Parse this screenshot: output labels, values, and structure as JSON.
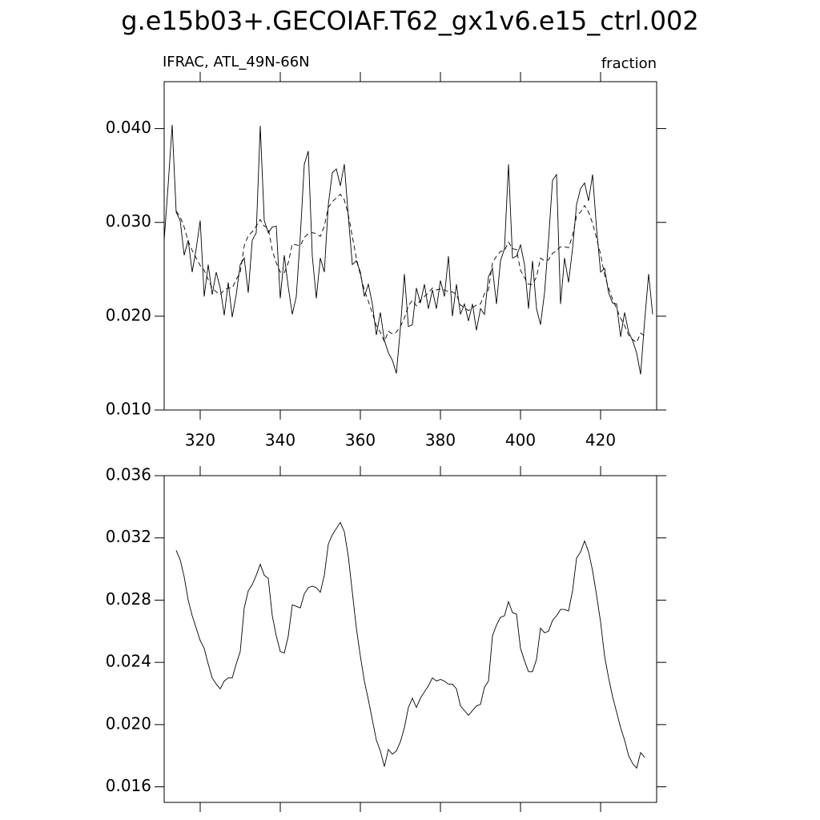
{
  "title": "g.e15b03+.GECOIAF.T62_gx1v6.e15_ctrl.002",
  "chart_data": [
    {
      "type": "line",
      "left_label": "IFRAC, ATL_49N-66N",
      "right_label": "fraction",
      "x": [
        311,
        312,
        313,
        314,
        315,
        316,
        317,
        318,
        319,
        320,
        321,
        322,
        323,
        324,
        325,
        326,
        327,
        328,
        329,
        330,
        331,
        332,
        333,
        334,
        335,
        336,
        337,
        338,
        339,
        340,
        341,
        342,
        343,
        344,
        345,
        346,
        347,
        348,
        349,
        350,
        351,
        352,
        353,
        354,
        355,
        356,
        357,
        358,
        359,
        360,
        361,
        362,
        363,
        364,
        365,
        366,
        367,
        368,
        369,
        370,
        371,
        372,
        373,
        374,
        375,
        376,
        377,
        378,
        379,
        380,
        381,
        382,
        383,
        384,
        385,
        386,
        387,
        388,
        389,
        390,
        391,
        392,
        393,
        394,
        395,
        396,
        397,
        398,
        399,
        400,
        401,
        402,
        403,
        404,
        405,
        406,
        407,
        408,
        409,
        410,
        411,
        412,
        413,
        414,
        415,
        416,
        417,
        418,
        419,
        420,
        421,
        422,
        423,
        424,
        425,
        426,
        427,
        428,
        429,
        430,
        431,
        432,
        433
      ],
      "series": [
        {
          "color": "#000000",
          "dash": false,
          "values": [
            0.0281,
            0.034,
            0.0404,
            0.0311,
            0.0302,
            0.0265,
            0.0281,
            0.0247,
            0.0272,
            0.0302,
            0.0221,
            0.0255,
            0.0223,
            0.0247,
            0.023,
            0.0201,
            0.0236,
            0.0199,
            0.0223,
            0.0255,
            0.0262,
            0.0225,
            0.0281,
            0.0289,
            0.0403,
            0.0302,
            0.0289,
            0.0295,
            0.0296,
            0.0219,
            0.0265,
            0.0231,
            0.0202,
            0.0221,
            0.0285,
            0.0362,
            0.0376,
            0.0264,
            0.0219,
            0.0262,
            0.0247,
            0.0319,
            0.0353,
            0.0357,
            0.0339,
            0.0362,
            0.0306,
            0.0255,
            0.0259,
            0.0247,
            0.0221,
            0.0234,
            0.0213,
            0.018,
            0.0204,
            0.0174,
            0.0161,
            0.0153,
            0.0139,
            0.0187,
            0.0245,
            0.0189,
            0.0191,
            0.023,
            0.0214,
            0.0234,
            0.0208,
            0.0228,
            0.0208,
            0.0238,
            0.0221,
            0.0264,
            0.02,
            0.0234,
            0.0202,
            0.0213,
            0.0195,
            0.0213,
            0.0185,
            0.0208,
            0.0202,
            0.0242,
            0.0251,
            0.0213,
            0.0259,
            0.0272,
            0.0362,
            0.0262,
            0.0264,
            0.0276,
            0.0255,
            0.0208,
            0.0259,
            0.0208,
            0.0191,
            0.0225,
            0.0281,
            0.0345,
            0.0351,
            0.0213,
            0.0262,
            0.0236,
            0.0272,
            0.0319,
            0.0336,
            0.0342,
            0.0323,
            0.0351,
            0.0293,
            0.0247,
            0.0251,
            0.0225,
            0.0214,
            0.0213,
            0.0178,
            0.0204,
            0.0183,
            0.0174,
            0.0161,
            0.0138,
            0.0195,
            0.0245,
            0.0202
          ]
        },
        {
          "color": "#000000",
          "dash": true,
          "values": [
            null,
            null,
            null,
            0.0312,
            0.0306,
            0.0295,
            0.028,
            0.027,
            0.0262,
            0.0254,
            0.0249,
            0.0239,
            0.023,
            0.0226,
            0.0223,
            0.0228,
            0.023,
            0.023,
            0.0239,
            0.0247,
            0.0275,
            0.0286,
            0.029,
            0.0296,
            0.0303,
            0.0296,
            0.0294,
            0.027,
            0.0257,
            0.0247,
            0.0246,
            0.0257,
            0.0277,
            0.0276,
            0.0275,
            0.0284,
            0.0288,
            0.0289,
            0.0288,
            0.0285,
            0.0296,
            0.0316,
            0.0322,
            0.0326,
            0.033,
            0.0324,
            0.0308,
            0.0285,
            0.0262,
            0.0244,
            0.0228,
            0.0216,
            0.0203,
            0.019,
            0.0183,
            0.0173,
            0.0184,
            0.0181,
            0.0183,
            0.0189,
            0.0198,
            0.0211,
            0.0217,
            0.0211,
            0.0217,
            0.0221,
            0.0225,
            0.023,
            0.0228,
            0.0229,
            0.0228,
            0.0226,
            0.0226,
            0.0223,
            0.0212,
            0.0209,
            0.0206,
            0.0209,
            0.0212,
            0.0213,
            0.0224,
            0.0228,
            0.0257,
            0.0264,
            0.0269,
            0.027,
            0.0279,
            0.0272,
            0.0271,
            0.0249,
            0.0241,
            0.0234,
            0.0234,
            0.0242,
            0.0262,
            0.0259,
            0.026,
            0.0267,
            0.027,
            0.0274,
            0.0274,
            0.0273,
            0.0286,
            0.0307,
            0.0311,
            0.0318,
            0.0311,
            0.0299,
            0.0283,
            0.0266,
            0.0244,
            0.023,
            0.0218,
            0.0208,
            0.0198,
            0.019,
            0.018,
            0.0175,
            0.0172,
            0.0182,
            0.0179,
            null,
            null
          ]
        }
      ],
      "xlim": [
        311,
        434
      ],
      "xticks": [
        320,
        340,
        360,
        380,
        400,
        420
      ],
      "xtick_labels": true,
      "ylim": [
        0.01,
        0.045
      ],
      "yticks": [
        {
          "value": 0.01,
          "label": "0.010"
        },
        {
          "value": 0.02,
          "label": "0.020"
        },
        {
          "value": 0.03,
          "label": "0.030"
        },
        {
          "value": 0.04,
          "label": "0.040"
        }
      ]
    },
    {
      "type": "line",
      "x": [
        311,
        312,
        313,
        314,
        315,
        316,
        317,
        318,
        319,
        320,
        321,
        322,
        323,
        324,
        325,
        326,
        327,
        328,
        329,
        330,
        331,
        332,
        333,
        334,
        335,
        336,
        337,
        338,
        339,
        340,
        341,
        342,
        343,
        344,
        345,
        346,
        347,
        348,
        349,
        350,
        351,
        352,
        353,
        354,
        355,
        356,
        357,
        358,
        359,
        360,
        361,
        362,
        363,
        364,
        365,
        366,
        367,
        368,
        369,
        370,
        371,
        372,
        373,
        374,
        375,
        376,
        377,
        378,
        379,
        380,
        381,
        382,
        383,
        384,
        385,
        386,
        387,
        388,
        389,
        390,
        391,
        392,
        393,
        394,
        395,
        396,
        397,
        398,
        399,
        400,
        401,
        402,
        403,
        404,
        405,
        406,
        407,
        408,
        409,
        410,
        411,
        412,
        413,
        414,
        415,
        416,
        417,
        418,
        419,
        420,
        421,
        422,
        423,
        424,
        425,
        426,
        427,
        428,
        429,
        430,
        431,
        432,
        433
      ],
      "series": [
        {
          "color": "#000000",
          "dash": false,
          "values": [
            null,
            null,
            null,
            0.0312,
            0.0306,
            0.0295,
            0.028,
            0.027,
            0.0262,
            0.0254,
            0.0249,
            0.0239,
            0.023,
            0.0226,
            0.0223,
            0.0228,
            0.023,
            0.023,
            0.0239,
            0.0247,
            0.0275,
            0.0286,
            0.029,
            0.0296,
            0.0303,
            0.0296,
            0.0294,
            0.027,
            0.0257,
            0.0247,
            0.0246,
            0.0257,
            0.0277,
            0.0276,
            0.0275,
            0.0284,
            0.0288,
            0.0289,
            0.0288,
            0.0285,
            0.0296,
            0.0316,
            0.0322,
            0.0326,
            0.033,
            0.0324,
            0.0308,
            0.0285,
            0.0262,
            0.0244,
            0.0228,
            0.0216,
            0.0203,
            0.019,
            0.0183,
            0.0173,
            0.0184,
            0.0181,
            0.0183,
            0.0189,
            0.0198,
            0.0211,
            0.0217,
            0.0211,
            0.0217,
            0.0221,
            0.0225,
            0.023,
            0.0228,
            0.0229,
            0.0228,
            0.0226,
            0.0226,
            0.0223,
            0.0212,
            0.0209,
            0.0206,
            0.0209,
            0.0212,
            0.0213,
            0.0224,
            0.0228,
            0.0257,
            0.0264,
            0.0269,
            0.027,
            0.0279,
            0.0272,
            0.0271,
            0.0249,
            0.0241,
            0.0234,
            0.0234,
            0.0242,
            0.0262,
            0.0259,
            0.026,
            0.0267,
            0.027,
            0.0274,
            0.0274,
            0.0273,
            0.0286,
            0.0307,
            0.0311,
            0.0318,
            0.0311,
            0.0299,
            0.0283,
            0.0266,
            0.0244,
            0.023,
            0.0218,
            0.0208,
            0.0198,
            0.019,
            0.018,
            0.0175,
            0.0172,
            0.0182,
            0.0179,
            null,
            null
          ]
        }
      ],
      "xlim": [
        311,
        434
      ],
      "xticks": [
        320,
        340,
        360,
        380,
        400,
        420
      ],
      "xtick_labels": false,
      "ylim": [
        0.015,
        0.036
      ],
      "yticks": [
        0.016,
        {
          "value": 0.02,
          "label": "0.020"
        },
        0.024,
        0.028,
        0.032,
        0.036
      ]
    }
  ]
}
